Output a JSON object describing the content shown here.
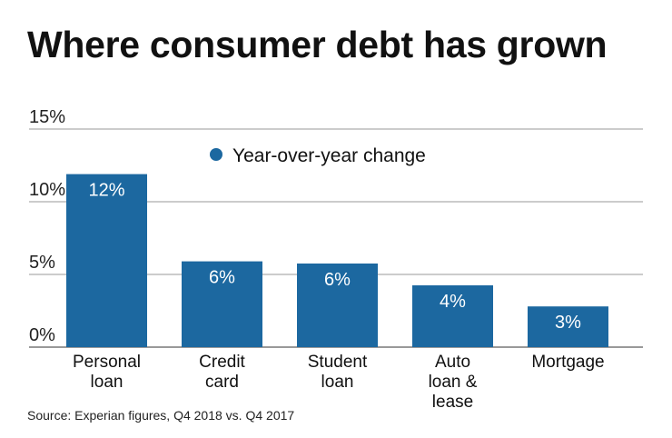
{
  "chart_data": {
    "type": "bar",
    "title": "Where consumer debt has grown",
    "categories": [
      [
        "Personal",
        "loan"
      ],
      [
        "Credit",
        "card"
      ],
      [
        "Student",
        "loan"
      ],
      [
        "Auto",
        "loan &",
        "lease"
      ],
      [
        "Mortgage"
      ]
    ],
    "series": [
      {
        "name": "Year-over-year change",
        "values": [
          11.9,
          5.9,
          5.75,
          4.25,
          2.8
        ]
      }
    ],
    "data_labels": [
      "12%",
      "6%",
      "6%",
      "4%",
      "3%"
    ],
    "yticks": [
      0,
      5,
      10,
      15
    ],
    "ytick_labels": [
      "0%",
      "5%",
      "10%",
      "15%"
    ],
    "ylim": [
      0,
      15
    ],
    "grid": true,
    "legend": "top-center",
    "colors": {
      "bar": "#1c68a0",
      "grid": "#999999",
      "label": "#ffffff"
    },
    "source": "Source: Experian figures, Q4 2018 vs. Q4 2017"
  }
}
